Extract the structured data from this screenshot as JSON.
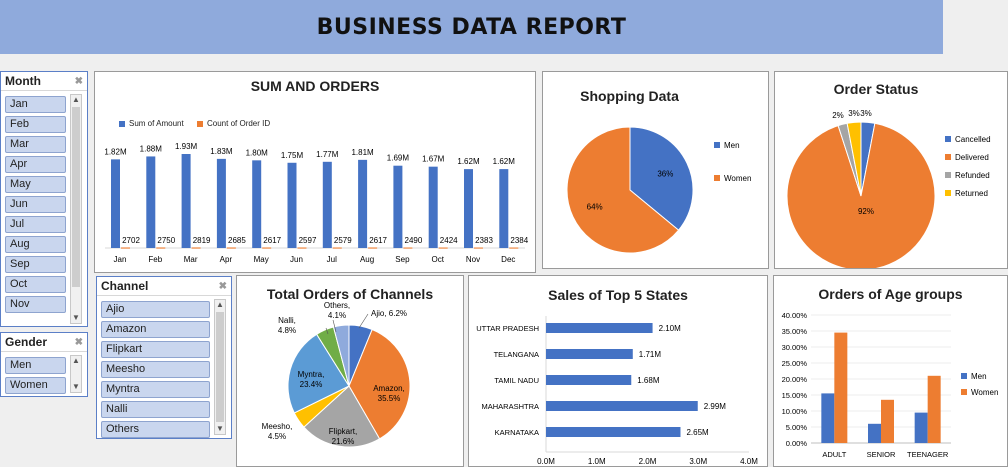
{
  "report_title": "BUSINESS DATA REPORT",
  "colors": {
    "blue": "#4472c4",
    "orange": "#ed7d31",
    "gray": "#a5a5a5",
    "yellow": "#ffc000",
    "green": "#70ad47",
    "lightblue": "#5b9bd5",
    "slicer_item": "#c9d6ee"
  },
  "slicers": {
    "month": {
      "title": "Month",
      "items": [
        "Jan",
        "Feb",
        "Mar",
        "Apr",
        "May",
        "Jun",
        "Jul",
        "Aug",
        "Sep",
        "Oct",
        "Nov"
      ]
    },
    "channel": {
      "title": "Channel",
      "items": [
        "Ajio",
        "Amazon",
        "Flipkart",
        "Meesho",
        "Myntra",
        "Nalli",
        "Others"
      ]
    },
    "gender": {
      "title": "Gender",
      "items": [
        "Men",
        "Women"
      ]
    }
  },
  "chart_data": [
    {
      "id": "sum_orders",
      "type": "bar",
      "title": "SUM AND ORDERS",
      "categories": [
        "Jan",
        "Feb",
        "Mar",
        "Apr",
        "May",
        "Jun",
        "Jul",
        "Aug",
        "Sep",
        "Oct",
        "Nov",
        "Dec"
      ],
      "series": [
        {
          "name": "Sum of Amount",
          "values": [
            1.82,
            1.88,
            1.93,
            1.83,
            1.8,
            1.75,
            1.77,
            1.81,
            1.69,
            1.67,
            1.62,
            1.62
          ],
          "labels": [
            "1.82M",
            "1.88M",
            "1.93M",
            "1.83M",
            "1.80M",
            "1.75M",
            "1.77M",
            "1.81M",
            "1.69M",
            "1.67M",
            "1.62M",
            "1.62M"
          ],
          "color": "#4472c4"
        },
        {
          "name": "Count of Order ID",
          "values": [
            2702,
            2750,
            2819,
            2685,
            2617,
            2597,
            2579,
            2617,
            2490,
            2424,
            2383,
            2384
          ],
          "labels": [
            "2702",
            "2750",
            "2819",
            "2685",
            "2617",
            "2597",
            "2579",
            "2617",
            "2490",
            "2424",
            "2383",
            "2384"
          ],
          "color": "#ed7d31"
        }
      ],
      "legend_position": "top-left"
    },
    {
      "id": "shopping",
      "type": "pie",
      "title": "Shopping Data",
      "slices": [
        {
          "name": "Men",
          "value": 36,
          "label": "36%",
          "color": "#4472c4"
        },
        {
          "name": "Women",
          "value": 64,
          "label": "64%",
          "color": "#ed7d31"
        }
      ],
      "legend_position": "right"
    },
    {
      "id": "order_status",
      "type": "pie",
      "title": "Order Status",
      "slices": [
        {
          "name": "Cancelled",
          "value": 3,
          "label": "3%",
          "color": "#4472c4"
        },
        {
          "name": "Delivered",
          "value": 92,
          "label": "92%",
          "color": "#ed7d31"
        },
        {
          "name": "Refunded",
          "value": 2,
          "label": "2%",
          "color": "#a5a5a5"
        },
        {
          "name": "Returned",
          "value": 3,
          "label": "3%",
          "color": "#ffc000"
        }
      ],
      "legend_position": "right"
    },
    {
      "id": "channels",
      "type": "pie",
      "title": "Total Orders of Channels",
      "slices": [
        {
          "name": "Ajio",
          "value": 6.2,
          "label": "Ajio, 6.2%",
          "color": "#4472c4"
        },
        {
          "name": "Amazon",
          "value": 35.5,
          "label": "Amazon, 35.5%",
          "color": "#ed7d31"
        },
        {
          "name": "Flipkart",
          "value": 21.6,
          "label": "Flipkart, 21.6%",
          "color": "#a5a5a5"
        },
        {
          "name": "Meesho",
          "value": 4.5,
          "label": "Meesho, 4.5%",
          "color": "#ffc000"
        },
        {
          "name": "Myntra",
          "value": 23.4,
          "label": "Myntra, 23.4%",
          "color": "#5b9bd5"
        },
        {
          "name": "Nalli",
          "value": 4.8,
          "label": "Nalli, 4.8%",
          "color": "#70ad47"
        },
        {
          "name": "Others",
          "value": 4.1,
          "label": "Others, 4.1%",
          "color": "#8faadc"
        }
      ]
    },
    {
      "id": "states",
      "type": "bar",
      "orientation": "horizontal",
      "title": "Sales of Top 5 States",
      "categories": [
        "UTTAR PRADESH",
        "TELANGANA",
        "TAMIL NADU",
        "MAHARASHTRA",
        "KARNATAKA"
      ],
      "values": [
        2.1,
        1.71,
        1.68,
        2.99,
        2.65
      ],
      "labels": [
        "2.10M",
        "1.71M",
        "1.68M",
        "2.99M",
        "2.65M"
      ],
      "xlim": [
        0,
        4
      ],
      "xticks": [
        "0.0M",
        "1.0M",
        "2.0M",
        "3.0M",
        "4.0M"
      ]
    },
    {
      "id": "age_groups",
      "type": "bar",
      "title": "Orders of Age groups",
      "categories": [
        "ADULT",
        "SENIOR",
        "TEENAGER"
      ],
      "series": [
        {
          "name": "Men",
          "values": [
            15.5,
            6.0,
            9.5
          ],
          "color": "#4472c4"
        },
        {
          "name": "Women",
          "values": [
            34.5,
            13.5,
            21.0
          ],
          "color": "#ed7d31"
        }
      ],
      "ylim": [
        0,
        40
      ],
      "yticks": [
        "0.00%",
        "5.00%",
        "10.00%",
        "15.00%",
        "20.00%",
        "25.00%",
        "30.00%",
        "35.00%",
        "40.00%"
      ],
      "legend_position": "right"
    }
  ]
}
